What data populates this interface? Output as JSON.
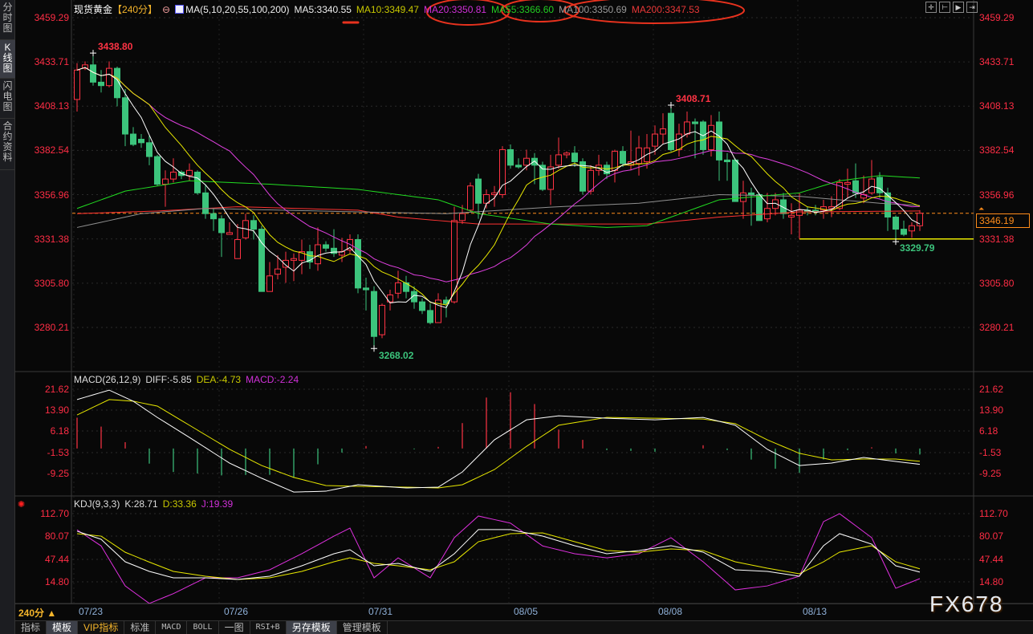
{
  "sidebar": {
    "items": [
      {
        "label": "分时图"
      },
      {
        "label": "K线图",
        "active": true
      },
      {
        "label": "闪电图"
      },
      {
        "label": "合约资料"
      }
    ]
  },
  "header": {
    "title": "现货黄金",
    "period": "【240分】",
    "ma_params": "MA(5,10,20,55,100,200)",
    "ma5": "MA5:3340.55",
    "ma10": "MA10:3349.47",
    "ma20": "MA20:3350.81",
    "ma55": "MA55:3366.60",
    "ma100": "MA100:3350.69",
    "ma200": "MA200:3347.53",
    "toolbar_icons": [
      "crosshair-icon",
      "range-icon",
      "play-icon",
      "move-right-icon"
    ]
  },
  "colors": {
    "up": "#ff3344",
    "down": "#3cc47c",
    "ma5": "#ffffff",
    "ma10": "#e8e800",
    "ma20": "#e040e0",
    "ma55": "#22dd22",
    "ma100": "#909090",
    "ma200": "#ff3333",
    "axis": "#ff2d45",
    "current": "#ff8c1a",
    "annotation": "#e8321e"
  },
  "price_axis": {
    "ticks": [
      "3459.29",
      "3433.71",
      "3408.13",
      "3382.54",
      "3356.96",
      "3331.38",
      "3305.80",
      "3280.21"
    ],
    "range": [
      3280.21,
      3459.29
    ],
    "current": "3346.19",
    "current_value": 3346.19
  },
  "annotations": {
    "high1": "3438.80",
    "low1": "3268.02",
    "high2": "3408.71",
    "low2": "3329.79",
    "hline_value": 3331.38
  },
  "candles": [
    [
      3412,
      3433,
      3405,
      3429
    ],
    [
      3430,
      3434,
      3429,
      3432
    ],
    [
      3432,
      3438.8,
      3420,
      3422
    ],
    [
      3422,
      3429,
      3416,
      3420
    ],
    [
      3420,
      3434,
      3419,
      3430
    ],
    [
      3430,
      3431,
      3408,
      3413
    ],
    [
      3413,
      3418,
      3385,
      3392
    ],
    [
      3392,
      3396,
      3385,
      3386
    ],
    [
      3389,
      3392,
      3384,
      3387
    ],
    [
      3387,
      3391,
      3374,
      3379
    ],
    [
      3379,
      3380,
      3362,
      3363
    ],
    [
      3363,
      3371,
      3350,
      3366
    ],
    [
      3366,
      3378,
      3364,
      3370
    ],
    [
      3370,
      3371,
      3366,
      3368
    ],
    [
      3368,
      3375,
      3365,
      3371
    ],
    [
      3370,
      3371,
      3357,
      3358
    ],
    [
      3358,
      3363,
      3343,
      3346
    ],
    [
      3346,
      3349,
      3336,
      3343
    ],
    [
      3343,
      3345,
      3321,
      3335
    ],
    [
      3334,
      3341,
      3334,
      3335
    ],
    [
      3320,
      3340,
      3320,
      3331
    ],
    [
      3332,
      3346,
      3331,
      3342
    ],
    [
      3342,
      3345,
      3331,
      3337
    ],
    [
      3337,
      3339,
      3301,
      3301
    ],
    [
      3301,
      3318,
      3301,
      3310
    ],
    [
      3311,
      3322,
      3308,
      3314
    ],
    [
      3315,
      3324,
      3306,
      3319
    ],
    [
      3319,
      3323,
      3307,
      3320
    ],
    [
      3319,
      3331,
      3311,
      3324
    ],
    [
      3324,
      3328,
      3314,
      3318
    ],
    [
      3317,
      3338,
      3313,
      3328
    ],
    [
      3328,
      3330,
      3324,
      3326
    ],
    [
      3326,
      3337,
      3321,
      3323
    ],
    [
      3322,
      3332,
      3318,
      3324
    ],
    [
      3325,
      3334,
      3323,
      3331
    ],
    [
      3331,
      3334,
      3300,
      3303
    ],
    [
      3303,
      3309,
      3290,
      3302
    ],
    [
      3301,
      3304,
      3268.02,
      3275
    ],
    [
      3276,
      3294,
      3274,
      3293
    ],
    [
      3295,
      3302,
      3290,
      3299
    ],
    [
      3300,
      3313,
      3297,
      3306
    ],
    [
      3306,
      3310,
      3297,
      3301
    ],
    [
      3301,
      3304,
      3291,
      3295
    ],
    [
      3295,
      3297,
      3288,
      3290
    ],
    [
      3290,
      3294,
      3282,
      3283
    ],
    [
      3283,
      3300,
      3283,
      3296
    ],
    [
      3296,
      3298,
      3286,
      3294
    ],
    [
      3295,
      3350,
      3294,
      3342
    ],
    [
      3342,
      3351,
      3340,
      3346
    ],
    [
      3348,
      3364,
      3347,
      3362
    ],
    [
      3366,
      3369,
      3343,
      3352
    ],
    [
      3352,
      3360,
      3349,
      3357
    ],
    [
      3357,
      3362,
      3350,
      3358
    ],
    [
      3357,
      3385,
      3355,
      3383
    ],
    [
      3383,
      3386,
      3372,
      3374
    ],
    [
      3374,
      3378,
      3372,
      3373
    ],
    [
      3374,
      3383,
      3371,
      3378
    ],
    [
      3378,
      3381,
      3363,
      3374
    ],
    [
      3374,
      3376,
      3359,
      3360
    ],
    [
      3360,
      3380,
      3351,
      3373
    ],
    [
      3374,
      3390,
      3372,
      3380
    ],
    [
      3380,
      3382,
      3378,
      3381
    ],
    [
      3381,
      3385,
      3373,
      3376
    ],
    [
      3376,
      3378,
      3357,
      3359
    ],
    [
      3359,
      3374,
      3357,
      3371
    ],
    [
      3371,
      3380,
      3368,
      3374
    ],
    [
      3374,
      3376,
      3366,
      3369
    ],
    [
      3371,
      3383,
      3364,
      3382
    ],
    [
      3382,
      3385,
      3373,
      3375
    ],
    [
      3374,
      3394,
      3371,
      3376
    ],
    [
      3375,
      3391,
      3368,
      3384
    ],
    [
      3376,
      3392,
      3372,
      3384
    ],
    [
      3385,
      3397,
      3380,
      3392
    ],
    [
      3392,
      3404,
      3386,
      3395
    ],
    [
      3404,
      3408.71,
      3382,
      3383
    ],
    [
      3383,
      3398,
      3379,
      3392
    ],
    [
      3392,
      3405,
      3390,
      3399
    ],
    [
      3399,
      3401,
      3378,
      3398
    ],
    [
      3399,
      3400,
      3380,
      3383
    ],
    [
      3383,
      3403,
      3379,
      3397
    ],
    [
      3399,
      3405,
      3365,
      3377
    ],
    [
      3377,
      3381,
      3365,
      3376
    ],
    [
      3377,
      3378,
      3353,
      3353
    ],
    [
      3353,
      3365,
      3343,
      3358
    ],
    [
      3358,
      3361,
      3339,
      3357
    ],
    [
      3357,
      3358,
      3342,
      3342
    ],
    [
      3343,
      3358,
      3341,
      3349
    ],
    [
      3349,
      3358,
      3345,
      3354
    ],
    [
      3354,
      3358,
      3343,
      3346
    ],
    [
      3344,
      3352,
      3334,
      3345
    ],
    [
      3345,
      3358,
      3341,
      3348
    ],
    [
      3348,
      3350,
      3345,
      3347
    ],
    [
      3348,
      3351,
      3345,
      3347
    ],
    [
      3348,
      3354,
      3343,
      3350
    ],
    [
      3349,
      3356,
      3344,
      3350
    ],
    [
      3349,
      3366,
      3348,
      3364
    ],
    [
      3363,
      3372,
      3355,
      3364
    ],
    [
      3365,
      3375,
      3355,
      3358
    ],
    [
      3355,
      3368,
      3352,
      3357
    ],
    [
      3358,
      3377,
      3357,
      3366
    ],
    [
      3367,
      3370,
      3355,
      3358
    ],
    [
      3358,
      3361,
      3336,
      3344
    ],
    [
      3344,
      3345,
      3329.79,
      3337
    ],
    [
      3337,
      3342,
      3333,
      3334
    ],
    [
      3336,
      3341,
      3332,
      3339
    ],
    [
      3339,
      3348,
      3336,
      3346.19
    ]
  ],
  "ma_long": {
    "ma55": [
      [
        0,
        3349
      ],
      [
        6,
        3359
      ],
      [
        14,
        3365
      ],
      [
        24,
        3363
      ],
      [
        35,
        3360
      ],
      [
        45,
        3354
      ],
      [
        50,
        3346
      ],
      [
        59,
        3340
      ],
      [
        66,
        3338
      ],
      [
        71,
        3339
      ],
      [
        80,
        3354
      ],
      [
        90,
        3358
      ],
      [
        95,
        3365
      ],
      [
        100,
        3368
      ],
      [
        105,
        3366.6
      ]
    ],
    "ma100": [
      [
        0,
        3338
      ],
      [
        8,
        3346
      ],
      [
        16,
        3349
      ],
      [
        35,
        3347
      ],
      [
        46,
        3346
      ],
      [
        60,
        3350
      ],
      [
        70,
        3352
      ],
      [
        80,
        3357
      ],
      [
        90,
        3356
      ],
      [
        100,
        3352
      ],
      [
        105,
        3350.69
      ]
    ],
    "ma200": [
      [
        0,
        3346
      ],
      [
        10,
        3347.5
      ],
      [
        20,
        3350
      ],
      [
        35,
        3348
      ],
      [
        40,
        3344
      ],
      [
        50,
        3340
      ],
      [
        71,
        3340
      ],
      [
        80,
        3344
      ],
      [
        90,
        3347
      ],
      [
        105,
        3347.53
      ]
    ]
  },
  "dates": [
    "07/23",
    "07/26",
    "07/31",
    "08/05",
    "08/08",
    "08/13"
  ],
  "macd": {
    "params": "MACD(26,12,9)",
    "diff": "DIFF:-5.85",
    "dea": "DEA:-4.73",
    "macd": "MACD:-2.24",
    "ticks": [
      "21.62",
      "13.90",
      "6.18",
      "-1.53",
      "-9.25"
    ],
    "points": [
      [
        0,
        18.1,
        12.4
      ],
      [
        4,
        21.6,
        18.1
      ],
      [
        7,
        17.5,
        17.5
      ],
      [
        10,
        11.5,
        15.7
      ],
      [
        14,
        4.1,
        8.6
      ],
      [
        19,
        -5.4,
        -0.3
      ],
      [
        23,
        -11.0,
        -6.3
      ],
      [
        27,
        -16.1,
        -10.7
      ],
      [
        31,
        -15.8,
        -13.7
      ],
      [
        35,
        -13.4,
        -14.0
      ],
      [
        41,
        -14.6,
        -14.3
      ],
      [
        45,
        -14.3,
        -14.6
      ],
      [
        48,
        -8.7,
        -13.4
      ],
      [
        52,
        3.2,
        -7.8
      ],
      [
        56,
        10.6,
        0.8
      ],
      [
        60,
        12.1,
        8.6
      ],
      [
        66,
        11.2,
        11.5
      ],
      [
        72,
        10.6,
        11.2
      ],
      [
        78,
        11.5,
        10.9
      ],
      [
        82,
        8.6,
        9.2
      ],
      [
        86,
        -0.3,
        3.2
      ],
      [
        90,
        -6.3,
        -1.8
      ],
      [
        94,
        -5.4,
        -4.2
      ],
      [
        98,
        -3.3,
        -3.9
      ],
      [
        102,
        -4.8,
        -3.9
      ],
      [
        105,
        -5.85,
        -4.73
      ]
    ]
  },
  "kdj": {
    "params": "KDJ(9,3,3)",
    "k": "K:28.71",
    "d": "D:33.36",
    "j": "J:19.39",
    "ticks": [
      "112.70",
      "80.07",
      "47.44",
      "14.80"
    ],
    "points": [
      [
        0,
        87,
        83.5,
        89
      ],
      [
        3,
        75.5,
        80,
        66
      ],
      [
        6,
        43.4,
        57,
        9
      ],
      [
        9,
        29.7,
        43,
        -16
      ],
      [
        12,
        20.5,
        29.7,
        -2
      ],
      [
        16,
        20.5,
        22.8,
        20.5
      ],
      [
        20,
        18.2,
        18.2,
        20.5
      ],
      [
        24,
        22.8,
        20.5,
        32
      ],
      [
        28,
        37.7,
        29.7,
        54.9
      ],
      [
        32,
        54.9,
        43.4,
        80
      ],
      [
        34,
        60.6,
        49.1,
        91.5
      ],
      [
        37,
        37.7,
        41.1,
        20.5
      ],
      [
        40,
        41.1,
        37.7,
        49
      ],
      [
        44,
        29.7,
        32,
        20.5
      ],
      [
        47,
        54.9,
        43.4,
        77.8
      ],
      [
        50,
        89.3,
        72,
        108.7
      ],
      [
        54,
        89.3,
        83.5,
        98.5
      ],
      [
        58,
        80,
        84.6,
        66
      ],
      [
        62,
        66.3,
        72,
        54.9
      ],
      [
        66,
        54.9,
        59.5,
        49
      ],
      [
        70,
        59.5,
        57.2,
        54.9
      ],
      [
        74,
        66.3,
        61.7,
        77.8
      ],
      [
        78,
        57.2,
        59.5,
        43.4
      ],
      [
        82,
        32,
        43.4,
        3.3
      ],
      [
        86,
        29.7,
        34.3,
        9
      ],
      [
        90,
        22.8,
        26.3,
        22.8
      ],
      [
        93,
        66.3,
        43.4,
        100.7
      ],
      [
        95,
        83.5,
        57.2,
        112
      ],
      [
        99,
        68.6,
        66.3,
        77.8
      ],
      [
        102,
        37.7,
        43.4,
        5.6
      ],
      [
        105,
        28.71,
        33.36,
        19.39
      ]
    ]
  },
  "footer": {
    "period": "240分 ▲",
    "tabs": [
      "指标",
      "模板",
      "VIP指标",
      "标准",
      "MACD",
      "BOLL",
      "一图",
      "RSI+B",
      "另存模板",
      "管理模板"
    ],
    "active_tabs": [
      "模板",
      "另存模板"
    ]
  },
  "watermark": "FX678"
}
